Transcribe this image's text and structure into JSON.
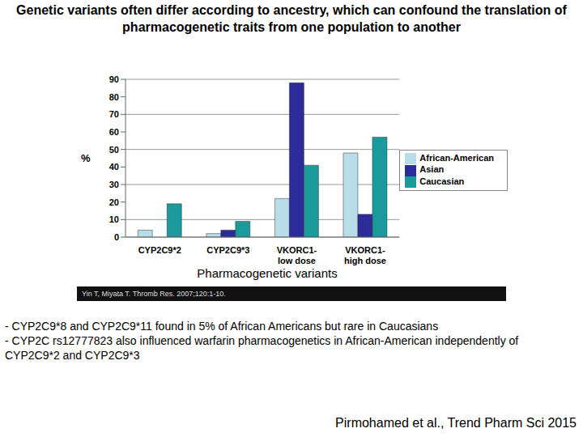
{
  "title": "Genetic variants often differ according to ancestry, which can confound the translation of pharmacogenetic traits from one population to another",
  "notes": [
    "- CYP2C9*8 and CYP2C9*11 found in 5% of African Americans but rare in Caucasians",
    "- CYP2C rs12777823 also influenced warfarin pharmacogenetics in African-American independently of CYP2C9*2 and CYP2C9*3"
  ],
  "citation": "Pirmohamed et al., Trend Pharm Sci 2015",
  "chart_data": {
    "type": "bar",
    "x_label": "Pharmacogenetic variants",
    "y_label": "%",
    "source": "Yin T, Miyata T. Thromb Res. 2007;120:1-10.",
    "categories": [
      "CYP2C9*2",
      "CYP2C9*3",
      "VKORC1-low dose",
      "VKORC1-high dose"
    ],
    "series": [
      {
        "name": "African-American",
        "color": "#b8dce8",
        "values": [
          4,
          2,
          22,
          48
        ]
      },
      {
        "name": "Asian",
        "color": "#2b2b9a",
        "values": [
          0,
          4,
          88,
          13
        ]
      },
      {
        "name": "Caucasian",
        "color": "#1a9a9a",
        "values": [
          19,
          9,
          41,
          57
        ]
      }
    ],
    "ylim": [
      0,
      90
    ],
    "yticks": [
      0,
      10,
      20,
      30,
      40,
      50,
      60,
      70,
      80,
      90
    ],
    "grid": true,
    "legend": "right"
  }
}
